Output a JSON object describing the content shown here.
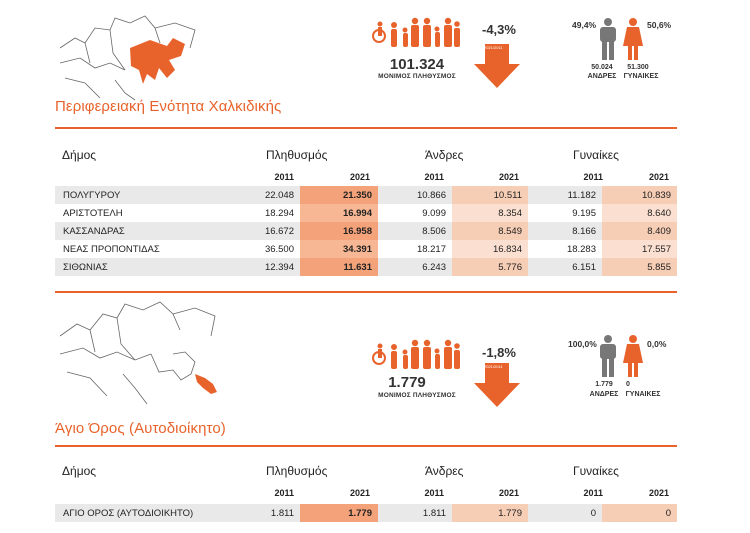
{
  "section1": {
    "title": "Περιφερειακή Ενότητα Χαλκιδικής",
    "population": "101.324",
    "population_label": "ΜΟΝΙΜΟΣ ΠΛΗΘΥΣΜΟΣ",
    "change": "-4,3%",
    "arrow_label": "2021/2011",
    "men_pct": "49,4%",
    "women_pct": "50,6%",
    "men_count": "50.024",
    "women_count": "51.300",
    "men_label": "ΑΝΔΡΕΣ",
    "women_label": "ΓΥΝΑΙΚΕΣ",
    "headers": {
      "dimos": "Δήμος",
      "population": "Πληθυσμός",
      "men": "Άνδρες",
      "women": "Γυναίκες"
    },
    "years": [
      "2011",
      "2021",
      "2011",
      "2021",
      "2011",
      "2021"
    ],
    "rows": [
      [
        "ΠΟΛΥΓΥΡΟΥ",
        "22.048",
        "21.350",
        "10.866",
        "10.511",
        "11.182",
        "10.839"
      ],
      [
        "ΑΡΙΣΤΟΤΕΛΗ",
        "18.294",
        "16.994",
        "9.099",
        "8.354",
        "9.195",
        "8.640"
      ],
      [
        "ΚΑΣΣΑΝΔΡΑΣ",
        "16.672",
        "16.958",
        "8.506",
        "8.549",
        "8.166",
        "8.409"
      ],
      [
        "ΝΕΑΣ ΠΡΟΠΟΝΤΙΔΑΣ",
        "36.500",
        "34.391",
        "18.217",
        "16.834",
        "18.283",
        "17.557"
      ],
      [
        "ΣΙΘΩΝΙΑΣ",
        "12.394",
        "11.631",
        "6.243",
        "5.776",
        "6.151",
        "5.855"
      ]
    ]
  },
  "section2": {
    "title": "Άγιο Όρος (Αυτοδιοίκητο)",
    "population": "1.779",
    "population_label": "ΜΟΝΙΜΟΣ ΠΛΗΘΥΣΜΟΣ",
    "change": "-1,8%",
    "arrow_label": "2021/2011",
    "men_pct": "100,0%",
    "women_pct": "0,0%",
    "men_count": "1.779",
    "women_count": "0",
    "men_label": "ΑΝΔΡΕΣ",
    "women_label": "ΓΥΝΑΙΚΕΣ",
    "headers": {
      "dimos": "Δήμος",
      "population": "Πληθυσμός",
      "men": "Άνδρες",
      "women": "Γυναίκες"
    },
    "years": [
      "2011",
      "2021",
      "2011",
      "2021",
      "2011",
      "2021"
    ],
    "rows": [
      [
        "ΑΓΙΟ ΟΡΟΣ (ΑΥΤΟΔΙΟΙΚΗΤΟ)",
        "1.811",
        "1.779",
        "1.811",
        "1.779",
        "0",
        "0"
      ]
    ]
  },
  "colors": {
    "accent": "#e8632b",
    "highlight": "#f4a27a",
    "row_grey": "#e9e9e9"
  },
  "icons": [
    "region-map-icon",
    "family-people-icon",
    "wheelchair-icon",
    "down-arrow-icon",
    "man-icon",
    "woman-icon"
  ]
}
